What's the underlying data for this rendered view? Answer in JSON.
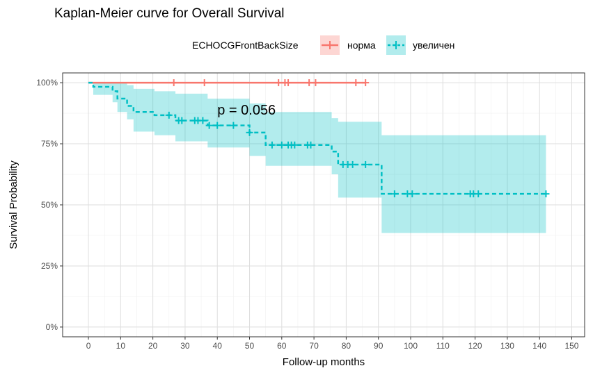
{
  "chart_data": {
    "type": "line",
    "step": true,
    "title": "Kaplan-Meier curve for Overall Survival",
    "xlabel": "Follow-up months",
    "ylabel": "Survival Probability",
    "xlim": [
      -8,
      154
    ],
    "ylim": [
      -0.04,
      1.04
    ],
    "x_ticks": [
      0,
      10,
      20,
      30,
      40,
      50,
      60,
      70,
      80,
      90,
      100,
      110,
      120,
      130,
      140,
      150
    ],
    "y_ticks": [
      0,
      0.25,
      0.5,
      0.75,
      1.0
    ],
    "y_tick_labels": [
      "0%",
      "25%",
      "50%",
      "75%",
      "100%"
    ],
    "grid": true,
    "legend": {
      "title": "ECHOCGFrontBackSize",
      "position": "top"
    },
    "annotation": {
      "text": "p = 0.056",
      "x": 40,
      "y": 0.89
    },
    "series": [
      {
        "name": "норма",
        "color": "#F8766D",
        "fill": "#F8766D",
        "line_style": "solid",
        "steps": [
          [
            0,
            1.0
          ],
          [
            86,
            1.0
          ]
        ],
        "ci": [],
        "censors": [
          [
            26.5,
            1.0
          ],
          [
            36,
            1.0
          ],
          [
            59,
            1.0
          ],
          [
            61,
            1.0
          ],
          [
            62,
            1.0
          ],
          [
            68.5,
            1.0
          ],
          [
            70.5,
            1.0
          ],
          [
            83,
            1.0
          ],
          [
            86,
            1.0
          ]
        ]
      },
      {
        "name": "увеличен",
        "color": "#00BFC4",
        "fill": "#00BFC4",
        "line_style": "dashed",
        "steps": [
          [
            0,
            1.0
          ],
          [
            1.5,
            0.983
          ],
          [
            7.5,
            0.965
          ],
          [
            9,
            0.935
          ],
          [
            12,
            0.905
          ],
          [
            14,
            0.88
          ],
          [
            20.5,
            0.867
          ],
          [
            27,
            0.845
          ],
          [
            37,
            0.825
          ],
          [
            50,
            0.796
          ],
          [
            55,
            0.745
          ],
          [
            75.5,
            0.718
          ],
          [
            77.5,
            0.665
          ],
          [
            91,
            0.545
          ],
          [
            142,
            0.545
          ]
        ],
        "ci": [
          [
            0,
            1.0,
            1.0
          ],
          [
            1.5,
            1.0,
            0.95
          ],
          [
            7.5,
            1.0,
            0.92
          ],
          [
            9,
            1.0,
            0.88
          ],
          [
            12,
            0.99,
            0.85
          ],
          [
            14,
            0.975,
            0.8
          ],
          [
            20.5,
            0.965,
            0.785
          ],
          [
            27,
            0.955,
            0.76
          ],
          [
            37,
            0.935,
            0.735
          ],
          [
            50,
            0.915,
            0.7
          ],
          [
            55,
            0.88,
            0.66
          ],
          [
            75.5,
            0.855,
            0.625
          ],
          [
            77.5,
            0.84,
            0.53
          ],
          [
            91,
            0.785,
            0.385
          ],
          [
            142,
            0.785,
            0.385
          ]
        ],
        "censors": [
          [
            25,
            0.867
          ],
          [
            28,
            0.845
          ],
          [
            29,
            0.845
          ],
          [
            33,
            0.845
          ],
          [
            34,
            0.845
          ],
          [
            35.5,
            0.845
          ],
          [
            37.5,
            0.825
          ],
          [
            40,
            0.825
          ],
          [
            45,
            0.825
          ],
          [
            50,
            0.796
          ],
          [
            57,
            0.745
          ],
          [
            60,
            0.745
          ],
          [
            62,
            0.745
          ],
          [
            63,
            0.745
          ],
          [
            64,
            0.745
          ],
          [
            68,
            0.745
          ],
          [
            69,
            0.745
          ],
          [
            79,
            0.665
          ],
          [
            80.5,
            0.665
          ],
          [
            82,
            0.665
          ],
          [
            86,
            0.665
          ],
          [
            95,
            0.545
          ],
          [
            99,
            0.545
          ],
          [
            100.5,
            0.545
          ],
          [
            118.5,
            0.545
          ],
          [
            119.5,
            0.545
          ],
          [
            121,
            0.545
          ],
          [
            142,
            0.545
          ]
        ]
      }
    ]
  }
}
